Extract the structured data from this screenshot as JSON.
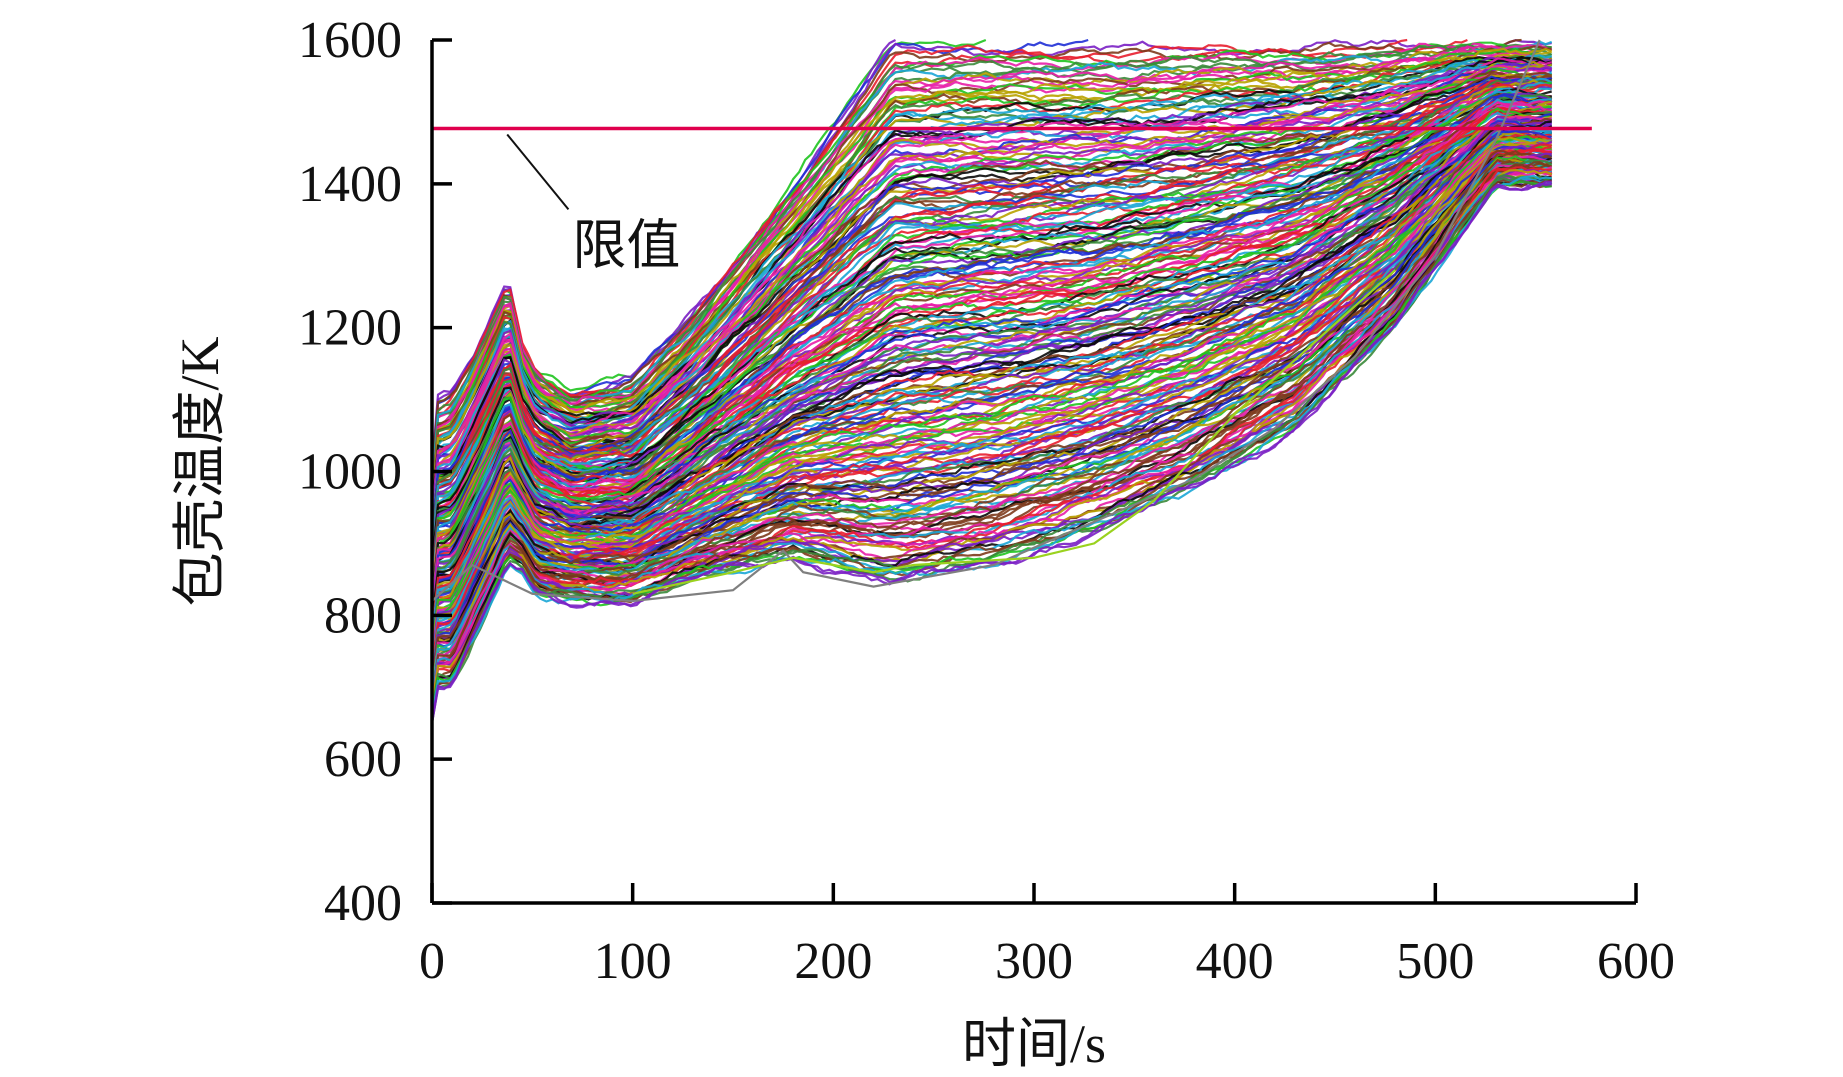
{
  "chart_data": {
    "type": "line",
    "title": "",
    "xlabel": "时间/s",
    "ylabel": "包壳温度/K",
    "xlim": [
      0,
      600
    ],
    "ylim": [
      400,
      1600
    ],
    "x_ticks": [
      0,
      100,
      200,
      300,
      400,
      500,
      600
    ],
    "y_ticks": [
      400,
      600,
      800,
      1000,
      1200,
      1400,
      1600
    ],
    "x_tick_labels": [
      "0",
      "100",
      "200",
      "300",
      "400",
      "500",
      "600"
    ],
    "y_tick_labels": [
      "400",
      "600",
      "800",
      "1000",
      "1200",
      "1400",
      "1600"
    ],
    "grid": false,
    "legend": "none",
    "limit_line": {
      "label": "限值",
      "value": 1477,
      "x_range": [
        0,
        578
      ],
      "color": "#e0004d"
    },
    "annotation": {
      "text": "限值",
      "points_to": [
        35,
        1477
      ],
      "text_at": [
        65,
        1370
      ]
    },
    "palette": [
      "#1f2fd6",
      "#e81e2e",
      "#1fc41f",
      "#7a1fc4",
      "#0a0a0a",
      "#e81ea8",
      "#1aa6d6",
      "#b8a200",
      "#3a8a3a",
      "#7d3b1c"
    ],
    "n_runs": 240,
    "series_envelope": {
      "x": [
        0,
        3,
        10,
        20,
        30,
        38,
        45,
        52,
        70,
        100,
        130,
        180,
        230,
        280,
        330,
        380,
        430,
        480,
        530
      ],
      "upper": [
        1000,
        1100,
        1110,
        1160,
        1220,
        1270,
        1180,
        1140,
        1110,
        1130,
        1220,
        1400,
        1600,
        1600,
        1600,
        1600,
        1600,
        1600,
        1600
      ],
      "lower": [
        650,
        700,
        700,
        760,
        820,
        870,
        860,
        830,
        820,
        820,
        850,
        880,
        845,
        870,
        915,
        975,
        1060,
        1200,
        1400
      ]
    },
    "outlier_runs": [
      {
        "color": "#7f7f7f",
        "x": [
          0,
          20,
          50,
          100,
          150,
          175,
          185,
          220,
          280,
          330,
          380,
          420,
          460,
          500,
          530,
          552
        ],
        "y": [
          820,
          870,
          830,
          820,
          835,
          890,
          860,
          840,
          870,
          930,
          990,
          1060,
          1160,
          1300,
          1460,
          1600
        ]
      },
      {
        "color": "#9ad21e",
        "x": [
          100,
          150,
          180,
          200,
          220,
          240,
          300,
          330,
          360,
          400,
          440,
          480
        ],
        "y": [
          830,
          860,
          880,
          870,
          860,
          870,
          880,
          900,
          960,
          1080,
          1180,
          1280
        ]
      }
    ]
  }
}
